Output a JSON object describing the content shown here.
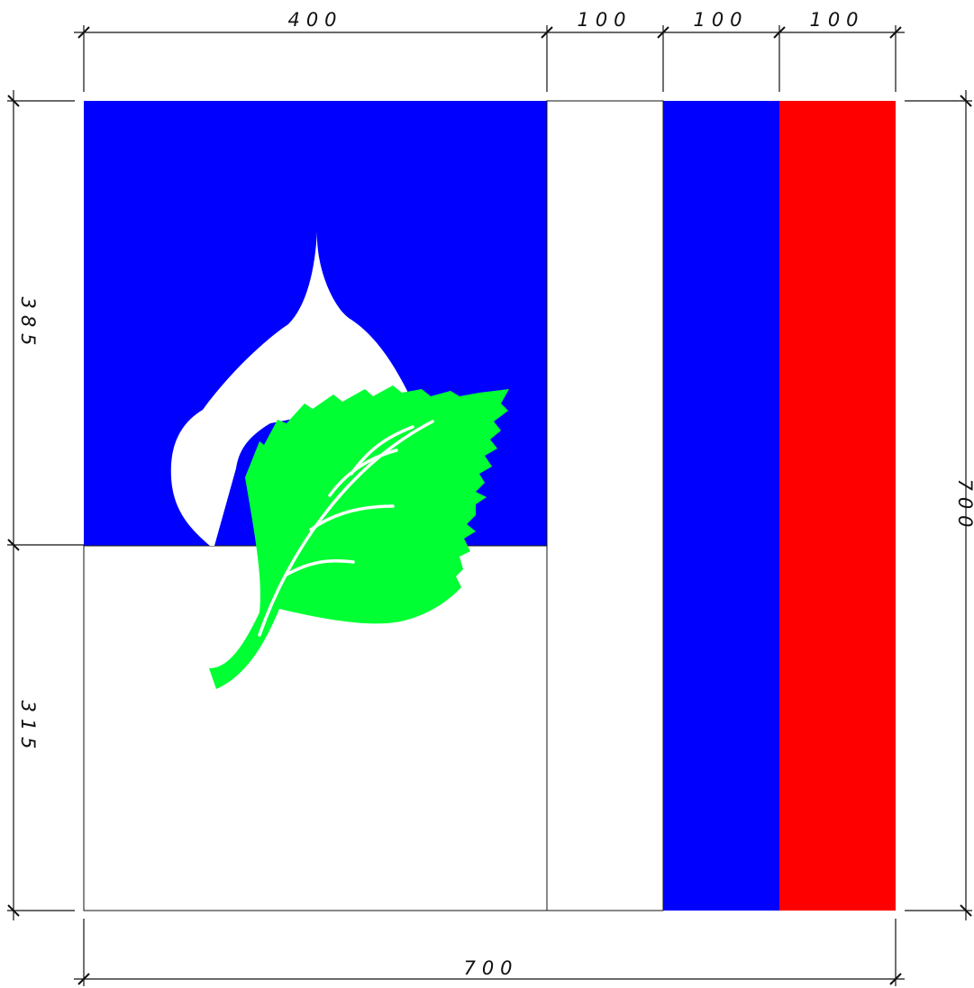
{
  "flag": {
    "colors": {
      "blue": "#0000FF",
      "white": "#FFFFFF",
      "green": "#00FF33",
      "red": "#FF0000",
      "line": "#111111"
    },
    "vertical_stripes": [
      {
        "width_units": 100,
        "color": "white"
      },
      {
        "width_units": 100,
        "color": "blue"
      },
      {
        "width_units": 100,
        "color": "red"
      }
    ],
    "canton_width_units": 400,
    "upper_height_units": 385,
    "lower_height_units": 315,
    "total_width_units": 700,
    "total_height_units": 700
  },
  "dimensions": {
    "top": [
      "400",
      "100",
      "100",
      "100"
    ],
    "bottom": "700",
    "left_upper": "385",
    "left_lower": "315",
    "right": "700"
  }
}
